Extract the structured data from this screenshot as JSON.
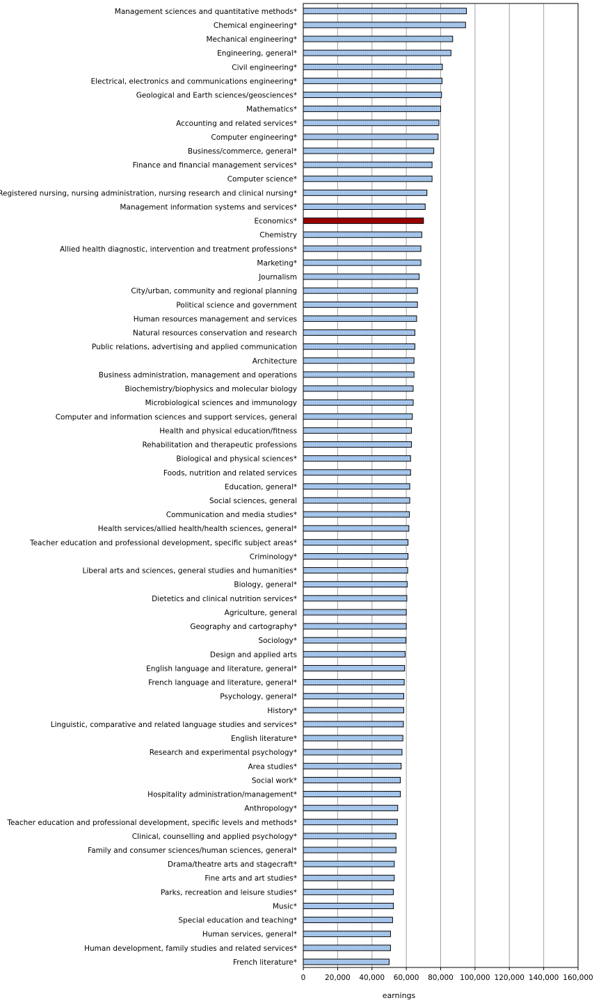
{
  "chart_data": {
    "type": "bar",
    "orientation": "horizontal",
    "xlabel": "earnings",
    "xlim": [
      0,
      160000
    ],
    "xticks": [
      0,
      20000,
      40000,
      60000,
      80000,
      100000,
      120000,
      140000,
      160000
    ],
    "xtick_labels": [
      "0",
      "20,000",
      "40,000",
      "60,000",
      "80,000",
      "100,000",
      "120,000",
      "140,000",
      "160,000"
    ],
    "grid": "vertical",
    "colors": {
      "default": "#a9c8ec",
      "highlight": "#990000",
      "outline": "#000000"
    },
    "highlight": "Economics*",
    "categories": [
      "Management sciences and quantitative methods*",
      "Chemical engineering*",
      "Mechanical engineering*",
      "Engineering, general*",
      "Civil engineering*",
      "Electrical, electronics and communications engineering*",
      "Geological and Earth sciences/geosciences*",
      "Mathematics*",
      "Accounting and related services*",
      "Computer engineering*",
      "Business/commerce, general*",
      "Finance and financial management services*",
      "Computer science*",
      "Registered nursing, nursing administration, nursing research and clinical nursing*",
      "Management information systems and services*",
      "Economics*",
      "Chemistry",
      "Allied health diagnostic, intervention and treatment professions*",
      "Marketing*",
      "Journalism",
      "City/urban, community and regional planning",
      "Political science and government",
      "Human resources management and services",
      "Natural resources conservation and research",
      "Public relations, advertising and applied communication",
      "Architecture",
      "Business administration, management and operations",
      "Biochemistry/biophysics and molecular biology",
      "Microbiological sciences and immunology",
      "Computer and information sciences and support services, general",
      "Health and physical education/fitness",
      "Rehabilitation and therapeutic professions",
      "Biological and physical sciences*",
      "Foods, nutrition and related services",
      "Education, general*",
      "Social sciences, general",
      "Communication and media studies*",
      "Health services/allied health/health sciences, general*",
      "Teacher education and professional development, specific subject areas*",
      "Criminology*",
      "Liberal arts and sciences, general studies and humanities*",
      "Biology, general*",
      "Dietetics and clinical nutrition services*",
      "Agriculture, general",
      "Geography and cartography*",
      "Sociology*",
      "Design and applied arts",
      "English language and literature, general*",
      "French language and literature, general*",
      "Psychology, general*",
      "History*",
      "Linguistic, comparative and related language studies and services*",
      "English literature*",
      "Research and experimental psychology*",
      "Area studies*",
      "Social work*",
      "Hospitality administration/management*",
      "Anthropology*",
      "Teacher education and professional development, specific levels and methods*",
      "Clinical, counselling and applied psychology*",
      "Family and consumer sciences/human sciences, general*",
      "Drama/theatre arts and stagecraft*",
      "Fine arts and art studies*",
      "Parks, recreation and leisure studies*",
      "Music*",
      "Special education and teaching*",
      "Human services, general*",
      "Human development, family studies and related services*",
      "French literature*"
    ],
    "values": [
      95000,
      94500,
      87000,
      86000,
      81000,
      80800,
      80500,
      80000,
      79000,
      78500,
      76000,
      75000,
      75000,
      72000,
      71000,
      70000,
      69000,
      68500,
      68500,
      67500,
      66500,
      66500,
      66000,
      65000,
      65000,
      64500,
      64500,
      64000,
      64000,
      63500,
      63000,
      63000,
      62500,
      62500,
      62000,
      62000,
      61800,
      61500,
      61000,
      61000,
      60800,
      60500,
      60300,
      60000,
      60000,
      59800,
      59300,
      59000,
      58800,
      58500,
      58500,
      58300,
      58000,
      57500,
      57000,
      56500,
      56500,
      55000,
      54800,
      54000,
      54000,
      53000,
      53000,
      52500,
      52500,
      52000,
      50800,
      50800,
      50000
    ]
  }
}
